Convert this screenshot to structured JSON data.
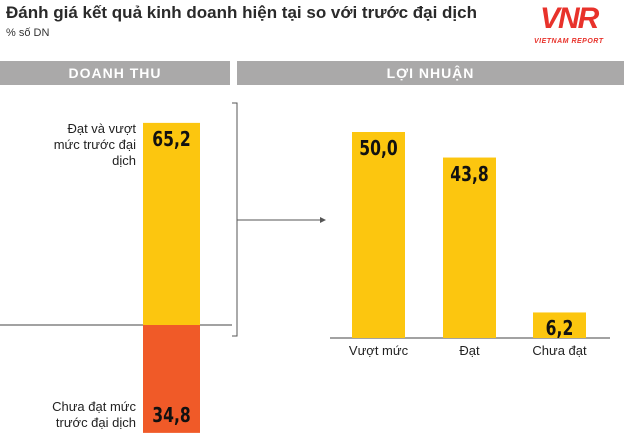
{
  "header": {
    "title": "Đánh giá kết quả kinh doanh hiện tại so với trước đại dịch",
    "subtitle": "% số DN",
    "logo": {
      "mark": "VNR",
      "text": "VIETNAM REPORT"
    }
  },
  "chart_data": [
    {
      "type": "diverging-bar",
      "title": "DOANH THU",
      "series": [
        {
          "name": "Đạt và vượt mức trước đại dịch",
          "color": "#fcc60f",
          "values": [
            65.2
          ],
          "value_labels": [
            "65,2"
          ]
        },
        {
          "name": "Chưa đạt mức trước đại dịch",
          "color": "#f05a28",
          "values": [
            34.8
          ],
          "value_labels": [
            "34,8"
          ]
        }
      ]
    },
    {
      "type": "bar",
      "title": "LỢI NHUẬN",
      "color": "#fcc60f",
      "categories": [
        "Vượt mức",
        "Đạt",
        "Chưa đạt"
      ],
      "values": [
        50.0,
        43.8,
        6.2
      ],
      "value_labels": [
        "50,0",
        "43,8",
        "6,2"
      ]
    }
  ]
}
